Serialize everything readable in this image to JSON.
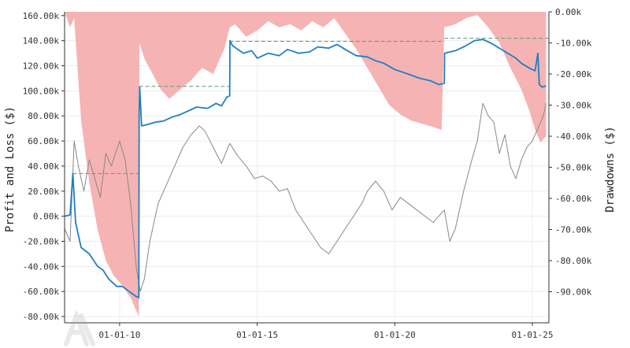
{
  "chart_data": {
    "type": "line",
    "title": "",
    "xlabel": "",
    "ylabel": "Profit and Loss ($)",
    "y2label": "Drawdowns ($)",
    "xlim": [
      2008.0,
      2025.6
    ],
    "ylim": [
      -85000,
      163000
    ],
    "y2lim": [
      -100000,
      0
    ],
    "x_ticks": [
      {
        "label": "01-01-10",
        "value": 2010.0
      },
      {
        "label": "01-01-15",
        "value": 2015.0
      },
      {
        "label": "01-01-20",
        "value": 2020.0
      },
      {
        "label": "01-01-25",
        "value": 2025.0
      }
    ],
    "y_ticks": [
      {
        "label": "-80.00k",
        "value": -80000
      },
      {
        "label": "-60.00k",
        "value": -60000
      },
      {
        "label": "-40.00k",
        "value": -40000
      },
      {
        "label": "-20.00k",
        "value": -20000
      },
      {
        "label": "0.00k",
        "value": 0
      },
      {
        "label": "20.00k",
        "value": 20000
      },
      {
        "label": "40.00k",
        "value": 40000
      },
      {
        "label": "60.00k",
        "value": 60000
      },
      {
        "label": "80.00k",
        "value": 80000
      },
      {
        "label": "100.00k",
        "value": 100000
      },
      {
        "label": "120.00k",
        "value": 120000
      },
      {
        "label": "140.00k",
        "value": 140000
      },
      {
        "label": "160.00k",
        "value": 160000
      }
    ],
    "y2_ticks": [
      {
        "label": "0.00k",
        "value": 0
      },
      {
        "label": "-10.00k",
        "value": -10000
      },
      {
        "label": "-20.00k",
        "value": -20000
      },
      {
        "label": "-30.00k",
        "value": -30000
      },
      {
        "label": "-40.00k",
        "value": -40000
      },
      {
        "label": "-50.00k",
        "value": -50000
      },
      {
        "label": "-60.00k",
        "value": -60000
      },
      {
        "label": "-70.00k",
        "value": -70000
      },
      {
        "label": "-80.00k",
        "value": -80000
      },
      {
        "label": "-90.00k",
        "value": -90000
      }
    ],
    "grid": true,
    "series": [
      {
        "role": "pnl",
        "color": "#1f7fc4",
        "points": [
          [
            2008.0,
            0
          ],
          [
            2008.2,
            1000
          ],
          [
            2008.3,
            34000
          ],
          [
            2008.4,
            -5000
          ],
          [
            2008.6,
            -25000
          ],
          [
            2008.9,
            -30000
          ],
          [
            2009.2,
            -40000
          ],
          [
            2009.4,
            -43000
          ],
          [
            2009.6,
            -50000
          ],
          [
            2009.9,
            -56000
          ],
          [
            2010.1,
            -56000
          ],
          [
            2010.35,
            -60000
          ],
          [
            2010.6,
            -64000
          ],
          [
            2010.7,
            -65000
          ],
          [
            2010.71,
            82000
          ],
          [
            2010.73,
            103000
          ],
          [
            2010.8,
            72000
          ],
          [
            2011.0,
            73000
          ],
          [
            2011.3,
            75000
          ],
          [
            2011.6,
            76000
          ],
          [
            2011.9,
            79000
          ],
          [
            2012.2,
            81000
          ],
          [
            2012.5,
            84000
          ],
          [
            2012.8,
            87000
          ],
          [
            2013.2,
            86000
          ],
          [
            2013.5,
            90000
          ],
          [
            2013.7,
            88000
          ],
          [
            2013.9,
            95000
          ],
          [
            2014.0,
            96000
          ],
          [
            2014.01,
            140000
          ],
          [
            2014.1,
            136000
          ],
          [
            2014.5,
            130000
          ],
          [
            2014.8,
            132000
          ],
          [
            2015.0,
            126000
          ],
          [
            2015.4,
            130000
          ],
          [
            2015.8,
            128000
          ],
          [
            2016.1,
            133000
          ],
          [
            2016.5,
            130000
          ],
          [
            2016.9,
            131000
          ],
          [
            2017.2,
            135000
          ],
          [
            2017.6,
            134000
          ],
          [
            2017.9,
            137000
          ],
          [
            2018.2,
            133000
          ],
          [
            2018.6,
            128000
          ],
          [
            2019.0,
            127000
          ],
          [
            2019.3,
            124000
          ],
          [
            2019.6,
            122000
          ],
          [
            2020.0,
            117000
          ],
          [
            2020.4,
            114000
          ],
          [
            2020.9,
            110000
          ],
          [
            2021.3,
            108000
          ],
          [
            2021.6,
            105000
          ],
          [
            2021.8,
            106000
          ],
          [
            2021.81,
            130000
          ],
          [
            2022.2,
            132000
          ],
          [
            2022.5,
            135000
          ],
          [
            2022.9,
            140000
          ],
          [
            2023.2,
            141000
          ],
          [
            2023.5,
            138000
          ],
          [
            2023.8,
            134000
          ],
          [
            2024.1,
            130000
          ],
          [
            2024.4,
            126000
          ],
          [
            2024.6,
            122000
          ],
          [
            2024.9,
            118000
          ],
          [
            2025.1,
            116000
          ],
          [
            2025.2,
            130000
          ],
          [
            2025.25,
            105000
          ],
          [
            2025.35,
            103000
          ],
          [
            2025.5,
            104000
          ]
        ]
      },
      {
        "role": "benchmark",
        "color": "#888888",
        "points": [
          [
            2008.0,
            -10000
          ],
          [
            2008.2,
            -20000
          ],
          [
            2008.35,
            60000
          ],
          [
            2008.5,
            40000
          ],
          [
            2008.7,
            20000
          ],
          [
            2008.9,
            45000
          ],
          [
            2009.1,
            30000
          ],
          [
            2009.3,
            15000
          ],
          [
            2009.5,
            50000
          ],
          [
            2009.7,
            40000
          ],
          [
            2010.0,
            60000
          ],
          [
            2010.2,
            45000
          ],
          [
            2010.4,
            10000
          ],
          [
            2010.6,
            -40000
          ],
          [
            2010.75,
            -60000
          ],
          [
            2010.9,
            -50000
          ],
          [
            2011.1,
            -20000
          ],
          [
            2011.4,
            10000
          ],
          [
            2011.7,
            25000
          ],
          [
            2012.0,
            40000
          ],
          [
            2012.3,
            55000
          ],
          [
            2012.6,
            65000
          ],
          [
            2012.9,
            72000
          ],
          [
            2013.1,
            68000
          ],
          [
            2013.4,
            55000
          ],
          [
            2013.7,
            42000
          ],
          [
            2014.0,
            58000
          ],
          [
            2014.3,
            48000
          ],
          [
            2014.6,
            40000
          ],
          [
            2014.9,
            30000
          ],
          [
            2015.2,
            32000
          ],
          [
            2015.5,
            28000
          ],
          [
            2015.8,
            20000
          ],
          [
            2016.1,
            22000
          ],
          [
            2016.4,
            5000
          ],
          [
            2016.7,
            -5000
          ],
          [
            2017.0,
            -15000
          ],
          [
            2017.3,
            -25000
          ],
          [
            2017.6,
            -30000
          ],
          [
            2017.9,
            -20000
          ],
          [
            2018.2,
            -10000
          ],
          [
            2018.5,
            0
          ],
          [
            2018.8,
            10000
          ],
          [
            2019.0,
            20000
          ],
          [
            2019.3,
            28000
          ],
          [
            2019.6,
            20000
          ],
          [
            2019.9,
            5000
          ],
          [
            2020.2,
            15000
          ],
          [
            2020.5,
            10000
          ],
          [
            2020.8,
            5000
          ],
          [
            2021.1,
            0
          ],
          [
            2021.4,
            -5000
          ],
          [
            2021.6,
            0
          ],
          [
            2021.8,
            5000
          ],
          [
            2022.0,
            -20000
          ],
          [
            2022.2,
            -10000
          ],
          [
            2022.5,
            20000
          ],
          [
            2022.8,
            45000
          ],
          [
            2023.0,
            60000
          ],
          [
            2023.2,
            90000
          ],
          [
            2023.4,
            80000
          ],
          [
            2023.6,
            75000
          ],
          [
            2023.8,
            50000
          ],
          [
            2024.0,
            65000
          ],
          [
            2024.2,
            40000
          ],
          [
            2024.4,
            30000
          ],
          [
            2024.6,
            45000
          ],
          [
            2024.8,
            55000
          ],
          [
            2025.0,
            60000
          ],
          [
            2025.2,
            70000
          ],
          [
            2025.4,
            80000
          ],
          [
            2025.5,
            90000
          ]
        ]
      },
      {
        "role": "drawdown",
        "color": "#f4a6a6",
        "fill": true,
        "points": [
          [
            2008.0,
            0
          ],
          [
            2008.2,
            -5000
          ],
          [
            2008.35,
            -2000
          ],
          [
            2008.6,
            -35000
          ],
          [
            2008.9,
            -55000
          ],
          [
            2009.2,
            -70000
          ],
          [
            2009.5,
            -80000
          ],
          [
            2009.8,
            -85000
          ],
          [
            2010.1,
            -88000
          ],
          [
            2010.4,
            -92000
          ],
          [
            2010.6,
            -96000
          ],
          [
            2010.7,
            -98000
          ],
          [
            2010.72,
            -10000
          ],
          [
            2010.9,
            -15000
          ],
          [
            2011.2,
            -20000
          ],
          [
            2011.5,
            -25000
          ],
          [
            2011.8,
            -28000
          ],
          [
            2012.2,
            -25000
          ],
          [
            2012.6,
            -22000
          ],
          [
            2013.0,
            -18000
          ],
          [
            2013.4,
            -20000
          ],
          [
            2013.8,
            -12000
          ],
          [
            2014.0,
            -5000
          ],
          [
            2014.2,
            -4000
          ],
          [
            2014.6,
            -8000
          ],
          [
            2015.0,
            -6000
          ],
          [
            2015.4,
            -3000
          ],
          [
            2015.8,
            -5000
          ],
          [
            2016.2,
            -4000
          ],
          [
            2016.6,
            -6000
          ],
          [
            2017.0,
            -3000
          ],
          [
            2017.4,
            -5000
          ],
          [
            2017.8,
            -2000
          ],
          [
            2018.2,
            -7000
          ],
          [
            2018.6,
            -12000
          ],
          [
            2019.0,
            -18000
          ],
          [
            2019.4,
            -24000
          ],
          [
            2019.8,
            -30000
          ],
          [
            2020.2,
            -33000
          ],
          [
            2020.6,
            -35000
          ],
          [
            2021.0,
            -36000
          ],
          [
            2021.4,
            -37000
          ],
          [
            2021.7,
            -38000
          ],
          [
            2021.8,
            -5000
          ],
          [
            2022.2,
            -4000
          ],
          [
            2022.6,
            -2000
          ],
          [
            2023.0,
            -1000
          ],
          [
            2023.4,
            -5000
          ],
          [
            2023.8,
            -10000
          ],
          [
            2024.2,
            -18000
          ],
          [
            2024.6,
            -25000
          ],
          [
            2024.9,
            -32000
          ],
          [
            2025.1,
            -38000
          ],
          [
            2025.3,
            -42000
          ],
          [
            2025.5,
            -40000
          ]
        ]
      }
    ],
    "high_water_marks": [
      {
        "from": 2008.3,
        "to": 2010.7,
        "value": -52000
      },
      {
        "from": 2010.7,
        "to": 2014.0,
        "value": -24000
      },
      {
        "from": 2014.0,
        "to": 2021.8,
        "value": -9500
      },
      {
        "from": 2021.8,
        "to": 2025.6,
        "value": -8500
      }
    ]
  }
}
